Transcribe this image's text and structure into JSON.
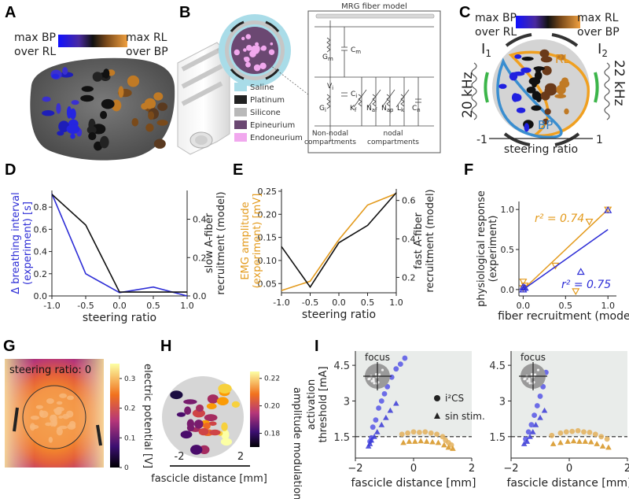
{
  "panels": {
    "A": {
      "letter": "A",
      "legend_left": [
        "max BP",
        "over RL"
      ],
      "legend_right": [
        "max RL",
        "over BP"
      ],
      "colors": {
        "bp": "#2525e0",
        "rl": "#e0891a",
        "neutral": "#111111"
      }
    },
    "B": {
      "letter": "B",
      "model_title": "MRG fiber model",
      "legend": [
        {
          "label": "Saline",
          "color": "#a9dce8"
        },
        {
          "label": "Platinum",
          "color": "#222222"
        },
        {
          "label": "Silicone",
          "color": "#b9b9b9"
        },
        {
          "label": "Epineurium",
          "color": "#6b4872"
        },
        {
          "label": "Endoneurium",
          "color": "#f1a8ee"
        }
      ],
      "circuit_labels": {
        "gm": "G",
        "gm_sub": "m",
        "cm": "C",
        "cm_sub": "m",
        "vi": "V",
        "vi_sub": "i",
        "ci": "C",
        "ci_sub": "i",
        "gi": "G",
        "gi_sub": "i",
        "k": "K",
        "k_sub": "f",
        "naf": "N",
        "naf_sub": "af",
        "nap": "N",
        "nap_sub": "ap",
        "lk": "L",
        "lk_sub": "k",
        "cn": "C",
        "cn_sub": "n"
      },
      "compartments": [
        "Non-nodal",
        "compartments",
        "nodal",
        "compartments"
      ]
    },
    "C": {
      "letter": "C",
      "legend_left": [
        "max BP",
        "over RL"
      ],
      "legend_right": [
        "max RL",
        "over BP"
      ],
      "i1": "I",
      "i1_sub": "1",
      "i2": "I",
      "i2_sub": "2",
      "freq_left": "20 kHz",
      "freq_right": "22 kHz",
      "region_rl": "RL",
      "region_bp": "BP",
      "axis_min": "-1",
      "axis_max": "1",
      "axis_label": "steering ratio"
    },
    "D": {
      "letter": "D",
      "chart_data": {
        "type": "line",
        "xlabel": "steering ratio",
        "ylabel": "Δ breathing interval (experiment) [s]",
        "y2label": "slow A-fiber recruitment (model)",
        "x": [
          -1.0,
          -0.5,
          0.0,
          0.5,
          1.0
        ],
        "xticks": [
          "-1.0",
          "-0.5",
          "0.0",
          "0.5",
          "1.0"
        ],
        "ylim": [
          0,
          0.95
        ],
        "yticks": [
          "0.0",
          "0.2",
          "0.4",
          "0.6",
          "0.8"
        ],
        "y2lim": [
          0,
          0.55
        ],
        "y2ticks": [
          "0.0",
          "0.2",
          "0.4"
        ],
        "series": [
          {
            "name": "experiment",
            "axis": "left",
            "color": "#2d2dd6",
            "values": [
              0.92,
              0.2,
              0.03,
              0.08,
              0.0
            ]
          },
          {
            "name": "model",
            "axis": "right",
            "color": "#111111",
            "values": [
              0.53,
              0.37,
              0.02,
              0.02,
              0.02
            ]
          }
        ]
      }
    },
    "E": {
      "letter": "E",
      "chart_data": {
        "type": "line",
        "xlabel": "steering ratio",
        "ylabel": "EMG amplitude (experiment) [mV]",
        "y2label": "fast A-fiber recruitment (model)",
        "x": [
          -1.0,
          -0.5,
          0.0,
          0.5,
          1.0
        ],
        "xticks": [
          "-1.0",
          "-0.5",
          "0.0",
          "0.5",
          "1.0"
        ],
        "ylim": [
          0.03,
          0.255
        ],
        "yticks": [
          "0.05",
          "0.10",
          "0.15",
          "0.20",
          "0.25"
        ],
        "y2lim": [
          0.12,
          0.66
        ],
        "y2ticks": [
          "0.2",
          "0.4",
          "0.6"
        ],
        "series": [
          {
            "name": "experiment",
            "axis": "left",
            "color": "#e39a1c",
            "values": [
              0.035,
              0.055,
              0.145,
              0.22,
              0.245
            ]
          },
          {
            "name": "model",
            "axis": "right",
            "color": "#111111",
            "values": [
              0.36,
              0.15,
              0.38,
              0.47,
              0.64
            ]
          }
        ]
      }
    },
    "F": {
      "letter": "F",
      "chart_data": {
        "type": "scatter",
        "xlabel": "fiber recruitment (model)",
        "ylabel": "physiological response (experiment)",
        "xlim": [
          -0.05,
          1.1
        ],
        "ylim": [
          -0.08,
          1.1
        ],
        "xticks": [
          "0.0",
          "0.5",
          "1.0"
        ],
        "yticks": [
          "0.0",
          "0.5",
          "1.0"
        ],
        "series": [
          {
            "name": "EMG",
            "marker": "triangle-down",
            "color": "#e39a1c",
            "r2_label": "r² = 0.74",
            "x": [
              0.0,
              0.0,
              0.02,
              0.38,
              0.62,
              0.78,
              1.0
            ],
            "y": [
              0.02,
              0.1,
              0.05,
              0.3,
              -0.02,
              0.85,
              1.0
            ],
            "fit": [
              [
                0.0,
                0.0
              ],
              [
                1.0,
                1.0
              ]
            ]
          },
          {
            "name": "breathing",
            "marker": "triangle-up",
            "color": "#2d2dd6",
            "r2_label": "r² = 0.75",
            "x": [
              0.0,
              0.0,
              0.02,
              0.68,
              1.0
            ],
            "y": [
              0.0,
              0.03,
              0.02,
              0.22,
              0.99
            ],
            "fit": [
              [
                0.0,
                0.0
              ],
              [
                1.0,
                0.75
              ]
            ]
          }
        ]
      }
    },
    "G": {
      "letter": "G",
      "title": "steering ratio: 0",
      "colorbar_label": "electric potential [V]",
      "colorbar_ticks": [
        "0",
        "0.1",
        "0.2",
        "0.3"
      ],
      "colorbar_range": [
        0,
        0.35
      ]
    },
    "H": {
      "letter": "H",
      "colorbar_label": "amplitude modulation [V]",
      "colorbar_ticks": [
        "0.18",
        "0.20",
        "0.22"
      ],
      "colorbar_range": [
        0.17,
        0.225
      ],
      "axis_min": "-2",
      "axis_max": "2",
      "axis_label": "fascicle distance [mm]"
    },
    "I": {
      "letter": "I",
      "chart_data": [
        {
          "type": "scatter",
          "inset_label": "focus",
          "xlabel": "fascicle distance [mm]",
          "ylabel": "activation threshold [mA]",
          "xlim": [
            -2,
            2
          ],
          "ylim": [
            0.6,
            5.1
          ],
          "xticks": [
            "−2",
            "0",
            "2"
          ],
          "yticks": [
            "1.5",
            "3",
            "4.5"
          ],
          "threshold_line": 1.5,
          "legend": [
            "i²CS",
            "sin stim."
          ],
          "series": [
            {
              "name": "i2CS blue",
              "marker": "circle",
              "color": "#5656e6",
              "x": [
                -1.5,
                -1.45,
                -1.4,
                -1.3,
                -1.2,
                -1.1,
                -1.0,
                -0.9,
                -0.75,
                -0.6,
                -0.45,
                -0.3
              ],
              "y": [
                1.3,
                1.45,
                1.9,
                2.2,
                2.7,
                3.0,
                3.3,
                3.6,
                4.0,
                4.35,
                4.55,
                4.8
              ]
            },
            {
              "name": "sin blue",
              "marker": "triangle",
              "color": "#3a3ad6",
              "x": [
                -1.55,
                -1.5,
                -1.45,
                -1.35,
                -1.25,
                -1.1,
                -0.95,
                -0.8,
                -0.6
              ],
              "y": [
                1.1,
                1.2,
                1.35,
                1.5,
                1.7,
                2.0,
                2.3,
                2.6,
                2.9
              ]
            },
            {
              "name": "i2CS orange",
              "marker": "circle",
              "color": "#e3b05a",
              "x": [
                -0.4,
                -0.2,
                0.0,
                0.2,
                0.4,
                0.6,
                0.8,
                1.0,
                1.1,
                1.2,
                1.3
              ],
              "y": [
                1.6,
                1.65,
                1.7,
                1.68,
                1.7,
                1.65,
                1.6,
                1.5,
                1.35,
                1.25,
                1.15
              ]
            },
            {
              "name": "sin orange",
              "marker": "triangle",
              "color": "#d6931f",
              "x": [
                -0.35,
                -0.15,
                0.05,
                0.25,
                0.45,
                0.65,
                0.85,
                1.05,
                1.2,
                1.35
              ],
              "y": [
                1.25,
                1.3,
                1.3,
                1.32,
                1.3,
                1.28,
                1.25,
                1.15,
                1.05,
                1.0
              ]
            }
          ]
        },
        {
          "type": "scatter",
          "inset_label": "focus",
          "xlabel": "fascicle distance [mm]",
          "ylabel": "",
          "xlim": [
            -2,
            2
          ],
          "ylim": [
            0.6,
            5.1
          ],
          "xticks": [
            "−2",
            "0",
            "2"
          ],
          "yticks": [
            "1.5",
            "3",
            "4.5"
          ],
          "threshold_line": 1.5,
          "series": [
            {
              "name": "i2CS blue",
              "marker": "circle",
              "color": "#5656e6",
              "x": [
                -1.5,
                -1.4,
                -1.3,
                -1.2,
                -1.1,
                -1.0,
                -0.9,
                -0.8
              ],
              "y": [
                1.4,
                1.7,
                2.0,
                2.4,
                2.8,
                3.2,
                3.6,
                4.2
              ]
            },
            {
              "name": "sin blue",
              "marker": "triangle",
              "color": "#3a3ad6",
              "x": [
                -1.55,
                -1.45,
                -1.35,
                -1.25,
                -1.15,
                -1.0,
                -0.85
              ],
              "y": [
                1.2,
                1.3,
                1.5,
                1.7,
                2.0,
                2.3,
                2.6
              ]
            },
            {
              "name": "i2CS orange",
              "marker": "circle",
              "color": "#e3b05a",
              "x": [
                -0.6,
                -0.3,
                -0.1,
                0.1,
                0.3,
                0.5,
                0.7,
                0.9,
                1.1,
                1.3
              ],
              "y": [
                1.55,
                1.65,
                1.7,
                1.72,
                1.75,
                1.7,
                1.68,
                1.6,
                1.5,
                1.4
              ]
            },
            {
              "name": "sin orange",
              "marker": "triangle",
              "color": "#d6931f",
              "x": [
                -0.55,
                -0.3,
                -0.05,
                0.15,
                0.35,
                0.55,
                0.75,
                0.95,
                1.15,
                1.35
              ],
              "y": [
                1.2,
                1.25,
                1.3,
                1.32,
                1.3,
                1.3,
                1.28,
                1.2,
                1.1,
                1.05
              ]
            }
          ]
        }
      ]
    }
  }
}
